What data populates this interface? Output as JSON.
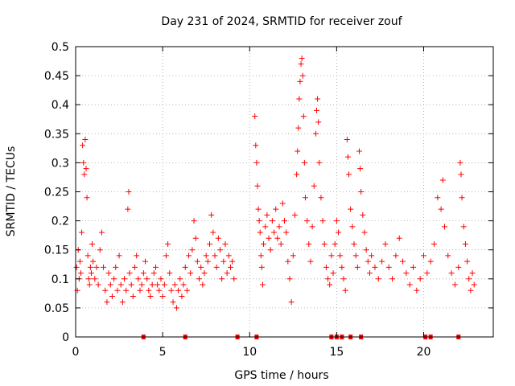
{
  "chart_data": {
    "type": "scatter",
    "title": "Day 231 of 2024, SRMTID for receiver zouf",
    "xlabel": "GPS time / hours",
    "ylabel": "SRMTID / TECUs",
    "xlim": [
      0,
      24
    ],
    "ylim": [
      0,
      0.5
    ],
    "xticks": [
      0,
      5,
      10,
      15,
      20
    ],
    "xtick_labels": [
      "0",
      "5",
      "10",
      "15",
      "20"
    ],
    "yticks": [
      0,
      0.05,
      0.1,
      0.15,
      0.2,
      0.25,
      0.3,
      0.35,
      0.4,
      0.45,
      0.5
    ],
    "ytick_labels": [
      "0",
      "0.05",
      "0.1",
      "0.15",
      "0.2",
      "0.25",
      "0.3",
      "0.35",
      "0.4",
      "0.45",
      "0.5"
    ],
    "grid": true,
    "marker": "plus",
    "color": "#ff0000",
    "series": [
      {
        "name": "SRMTID",
        "points": [
          [
            0.05,
            0.12
          ],
          [
            0.1,
            0.08
          ],
          [
            0.15,
            0.15
          ],
          [
            0.2,
            0.1
          ],
          [
            0.25,
            0.13
          ],
          [
            0.3,
            0.11
          ],
          [
            0.35,
            0.18
          ],
          [
            0.4,
            0.33
          ],
          [
            0.45,
            0.3
          ],
          [
            0.5,
            0.28
          ],
          [
            0.55,
            0.34
          ],
          [
            0.6,
            0.29
          ],
          [
            0.65,
            0.24
          ],
          [
            0.7,
            0.14
          ],
          [
            0.75,
            0.1
          ],
          [
            0.8,
            0.09
          ],
          [
            0.85,
            0.12
          ],
          [
            0.9,
            0.11
          ],
          [
            0.95,
            0.16
          ],
          [
            1.0,
            0.13
          ],
          [
            1.1,
            0.1
          ],
          [
            1.2,
            0.12
          ],
          [
            1.3,
            0.09
          ],
          [
            1.4,
            0.15
          ],
          [
            1.5,
            0.18
          ],
          [
            1.6,
            0.12
          ],
          [
            1.7,
            0.08
          ],
          [
            1.8,
            0.06
          ],
          [
            1.9,
            0.11
          ],
          [
            2.0,
            0.09
          ],
          [
            2.1,
            0.07
          ],
          [
            2.2,
            0.1
          ],
          [
            2.3,
            0.12
          ],
          [
            2.4,
            0.08
          ],
          [
            2.5,
            0.14
          ],
          [
            2.6,
            0.09
          ],
          [
            2.7,
            0.06
          ],
          [
            2.8,
            0.1
          ],
          [
            2.9,
            0.08
          ],
          [
            3.0,
            0.22
          ],
          [
            3.05,
            0.25
          ],
          [
            3.1,
            0.11
          ],
          [
            3.2,
            0.09
          ],
          [
            3.3,
            0.07
          ],
          [
            3.4,
            0.12
          ],
          [
            3.5,
            0.14
          ],
          [
            3.6,
            0.1
          ],
          [
            3.7,
            0.08
          ],
          [
            3.8,
            0.09
          ],
          [
            3.9,
            0.11
          ],
          [
            4.0,
            0.13
          ],
          [
            4.1,
            0.1
          ],
          [
            4.2,
            0.08
          ],
          [
            4.3,
            0.07
          ],
          [
            4.4,
            0.09
          ],
          [
            4.5,
            0.11
          ],
          [
            4.6,
            0.12
          ],
          [
            4.7,
            0.09
          ],
          [
            4.8,
            0.08
          ],
          [
            4.9,
            0.1
          ],
          [
            5.0,
            0.07
          ],
          [
            5.1,
            0.09
          ],
          [
            5.2,
            0.14
          ],
          [
            5.3,
            0.16
          ],
          [
            5.4,
            0.11
          ],
          [
            5.5,
            0.08
          ],
          [
            5.6,
            0.06
          ],
          [
            5.7,
            0.09
          ],
          [
            5.8,
            0.05
          ],
          [
            5.9,
            0.08
          ],
          [
            6.0,
            0.1
          ],
          [
            6.1,
            0.07
          ],
          [
            6.2,
            0.09
          ],
          [
            6.3,
            0.12
          ],
          [
            6.4,
            0.08
          ],
          [
            6.5,
            0.14
          ],
          [
            6.6,
            0.11
          ],
          [
            6.7,
            0.15
          ],
          [
            6.8,
            0.2
          ],
          [
            6.9,
            0.17
          ],
          [
            7.0,
            0.13
          ],
          [
            7.1,
            0.1
          ],
          [
            7.2,
            0.12
          ],
          [
            7.3,
            0.09
          ],
          [
            7.4,
            0.11
          ],
          [
            7.5,
            0.14
          ],
          [
            7.6,
            0.13
          ],
          [
            7.7,
            0.16
          ],
          [
            7.8,
            0.21
          ],
          [
            7.9,
            0.18
          ],
          [
            8.0,
            0.14
          ],
          [
            8.1,
            0.12
          ],
          [
            8.2,
            0.17
          ],
          [
            8.3,
            0.15
          ],
          [
            8.4,
            0.1
          ],
          [
            8.5,
            0.13
          ],
          [
            8.6,
            0.16
          ],
          [
            8.7,
            0.11
          ],
          [
            8.8,
            0.14
          ],
          [
            8.9,
            0.12
          ],
          [
            9.0,
            0.13
          ],
          [
            9.1,
            0.1
          ],
          [
            10.3,
            0.38
          ],
          [
            10.35,
            0.33
          ],
          [
            10.4,
            0.3
          ],
          [
            10.45,
            0.26
          ],
          [
            10.5,
            0.22
          ],
          [
            10.55,
            0.2
          ],
          [
            10.6,
            0.18
          ],
          [
            10.65,
            0.14
          ],
          [
            10.7,
            0.12
          ],
          [
            10.75,
            0.09
          ],
          [
            10.8,
            0.16
          ],
          [
            10.9,
            0.19
          ],
          [
            11.0,
            0.21
          ],
          [
            11.1,
            0.17
          ],
          [
            11.2,
            0.15
          ],
          [
            11.3,
            0.2
          ],
          [
            11.4,
            0.18
          ],
          [
            11.5,
            0.22
          ],
          [
            11.6,
            0.17
          ],
          [
            11.7,
            0.19
          ],
          [
            11.8,
            0.16
          ],
          [
            11.9,
            0.23
          ],
          [
            12.0,
            0.2
          ],
          [
            12.1,
            0.18
          ],
          [
            12.2,
            0.13
          ],
          [
            12.3,
            0.1
          ],
          [
            12.4,
            0.06
          ],
          [
            12.5,
            0.14
          ],
          [
            12.6,
            0.21
          ],
          [
            12.7,
            0.28
          ],
          [
            12.75,
            0.32
          ],
          [
            12.8,
            0.36
          ],
          [
            12.85,
            0.41
          ],
          [
            12.9,
            0.44
          ],
          [
            12.95,
            0.47
          ],
          [
            13.0,
            0.48
          ],
          [
            13.05,
            0.45
          ],
          [
            13.1,
            0.38
          ],
          [
            13.15,
            0.3
          ],
          [
            13.2,
            0.24
          ],
          [
            13.3,
            0.2
          ],
          [
            13.4,
            0.16
          ],
          [
            13.5,
            0.13
          ],
          [
            13.6,
            0.19
          ],
          [
            13.7,
            0.26
          ],
          [
            13.8,
            0.35
          ],
          [
            13.85,
            0.39
          ],
          [
            13.9,
            0.41
          ],
          [
            13.95,
            0.37
          ],
          [
            14.0,
            0.3
          ],
          [
            14.1,
            0.24
          ],
          [
            14.2,
            0.2
          ],
          [
            14.3,
            0.16
          ],
          [
            14.4,
            0.12
          ],
          [
            14.5,
            0.1
          ],
          [
            14.6,
            0.09
          ],
          [
            14.7,
            0.14
          ],
          [
            14.8,
            0.11
          ],
          [
            14.9,
            0.16
          ],
          [
            15.0,
            0.2
          ],
          [
            15.1,
            0.18
          ],
          [
            15.2,
            0.14
          ],
          [
            15.3,
            0.12
          ],
          [
            15.4,
            0.1
          ],
          [
            15.5,
            0.08
          ],
          [
            15.6,
            0.34
          ],
          [
            15.65,
            0.31
          ],
          [
            15.7,
            0.28
          ],
          [
            15.8,
            0.22
          ],
          [
            15.9,
            0.19
          ],
          [
            16.0,
            0.16
          ],
          [
            16.1,
            0.14
          ],
          [
            16.2,
            0.12
          ],
          [
            16.3,
            0.32
          ],
          [
            16.35,
            0.29
          ],
          [
            16.4,
            0.25
          ],
          [
            16.5,
            0.21
          ],
          [
            16.6,
            0.18
          ],
          [
            16.7,
            0.15
          ],
          [
            16.8,
            0.13
          ],
          [
            16.9,
            0.11
          ],
          [
            17.0,
            0.14
          ],
          [
            17.2,
            0.12
          ],
          [
            17.4,
            0.1
          ],
          [
            17.6,
            0.13
          ],
          [
            17.8,
            0.16
          ],
          [
            18.0,
            0.12
          ],
          [
            18.2,
            0.1
          ],
          [
            18.4,
            0.14
          ],
          [
            18.6,
            0.17
          ],
          [
            18.8,
            0.13
          ],
          [
            19.0,
            0.11
          ],
          [
            19.2,
            0.09
          ],
          [
            19.4,
            0.12
          ],
          [
            19.6,
            0.08
          ],
          [
            19.8,
            0.1
          ],
          [
            20.0,
            0.14
          ],
          [
            20.2,
            0.11
          ],
          [
            20.4,
            0.13
          ],
          [
            20.6,
            0.16
          ],
          [
            20.8,
            0.24
          ],
          [
            21.0,
            0.22
          ],
          [
            21.1,
            0.27
          ],
          [
            21.2,
            0.19
          ],
          [
            21.4,
            0.14
          ],
          [
            21.6,
            0.11
          ],
          [
            21.8,
            0.09
          ],
          [
            22.0,
            0.12
          ],
          [
            22.1,
            0.3
          ],
          [
            22.15,
            0.28
          ],
          [
            22.2,
            0.24
          ],
          [
            22.3,
            0.19
          ],
          [
            22.4,
            0.16
          ],
          [
            22.5,
            0.13
          ],
          [
            22.6,
            0.1
          ],
          [
            22.7,
            0.08
          ],
          [
            22.8,
            0.11
          ],
          [
            22.9,
            0.09
          ]
        ]
      }
    ],
    "zero_markers": [
      3.9,
      6.3,
      9.3,
      10.4,
      14.7,
      15.0,
      15.3,
      15.8,
      16.4,
      20.1,
      20.4,
      22.0
    ]
  }
}
